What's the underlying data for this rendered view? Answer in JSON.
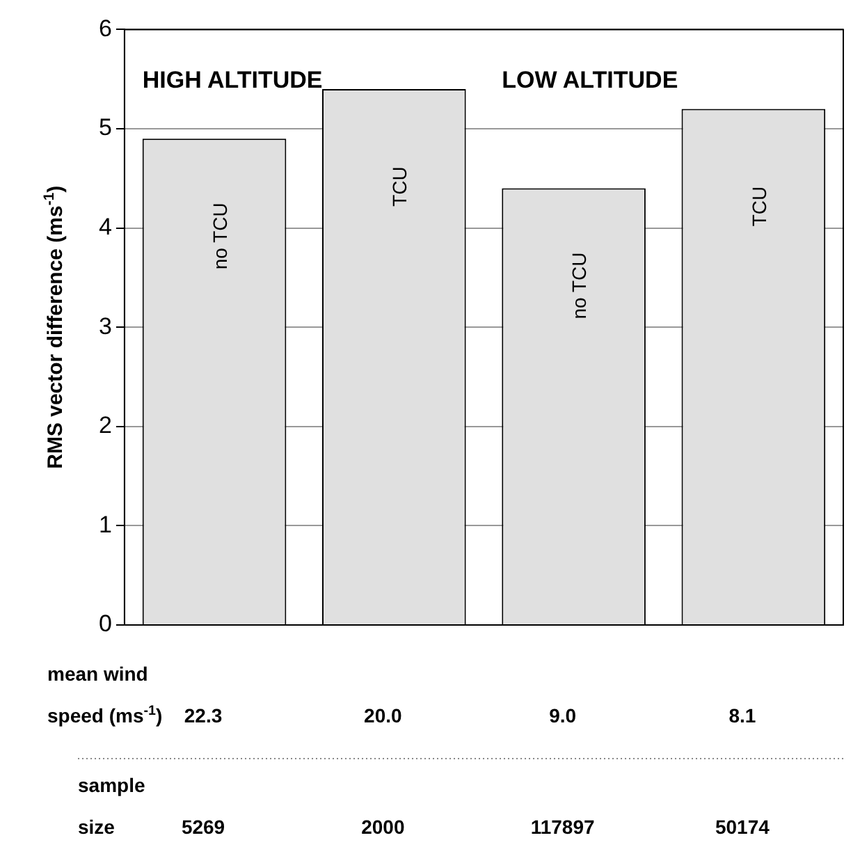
{
  "chart_data": {
    "type": "bar",
    "categories": [
      "no TCU",
      "TCU",
      "no TCU",
      "TCU"
    ],
    "values": [
      4.9,
      5.4,
      4.4,
      5.2
    ],
    "color": "#e0e0e0",
    "ylabel": "RMS vector difference (ms$^{-1}$)",
    "ylim": [
      0,
      6
    ],
    "yticks": [
      0,
      1,
      2,
      3,
      4,
      5,
      6
    ],
    "grid": "y",
    "tick_labels": "y",
    "annotations": [
      "HIGH ALTITUDE",
      "LOW ALTITUDE",
      "mean wind speed (ms$^{-1}$)",
      "22.3",
      "20.0",
      "9.0",
      "8.1",
      "sample size",
      "5269",
      "2000",
      "117897",
      "50174"
    ]
  }
}
